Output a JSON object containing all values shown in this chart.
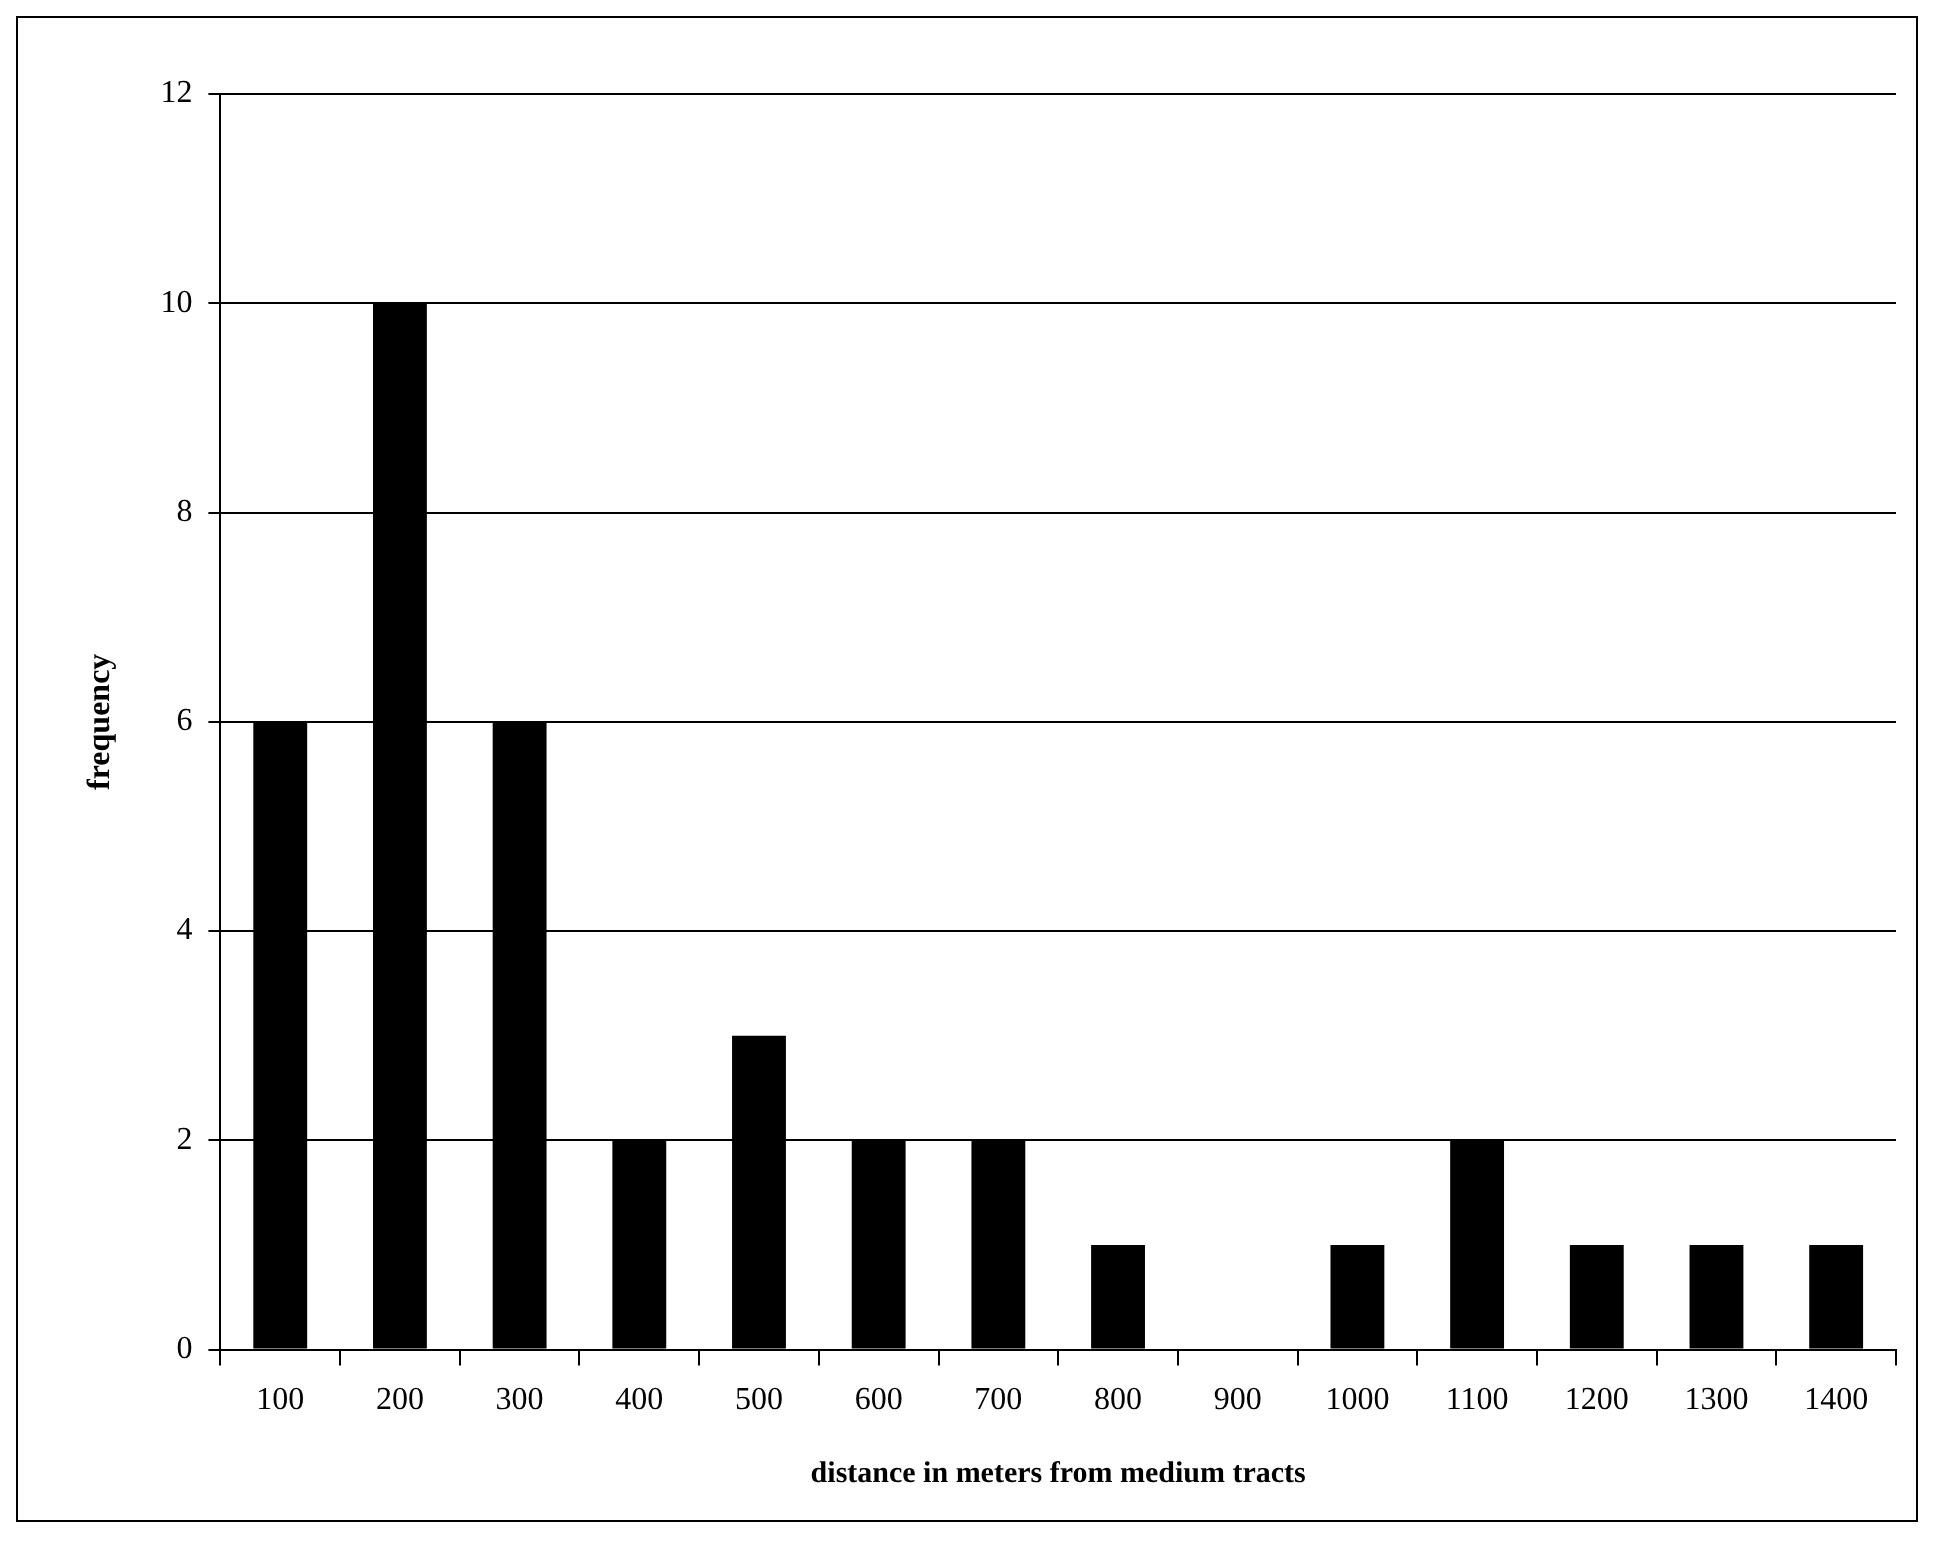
{
  "chart_data": {
    "type": "bar",
    "xlabel": "distance in meters from medium tracts",
    "ylabel": "frequency",
    "categories": [
      "100",
      "200",
      "300",
      "400",
      "500",
      "600",
      "700",
      "800",
      "900",
      "1000",
      "1100",
      "1200",
      "1300",
      "1400"
    ],
    "values": [
      6,
      10,
      6,
      2,
      3,
      2,
      2,
      1,
      0,
      1,
      2,
      1,
      1,
      1
    ],
    "color": "#000000",
    "ylim": [
      0,
      12
    ],
    "yticks": [
      0,
      2,
      4,
      6,
      8,
      10,
      12
    ],
    "grid": "y",
    "legend": false
  }
}
